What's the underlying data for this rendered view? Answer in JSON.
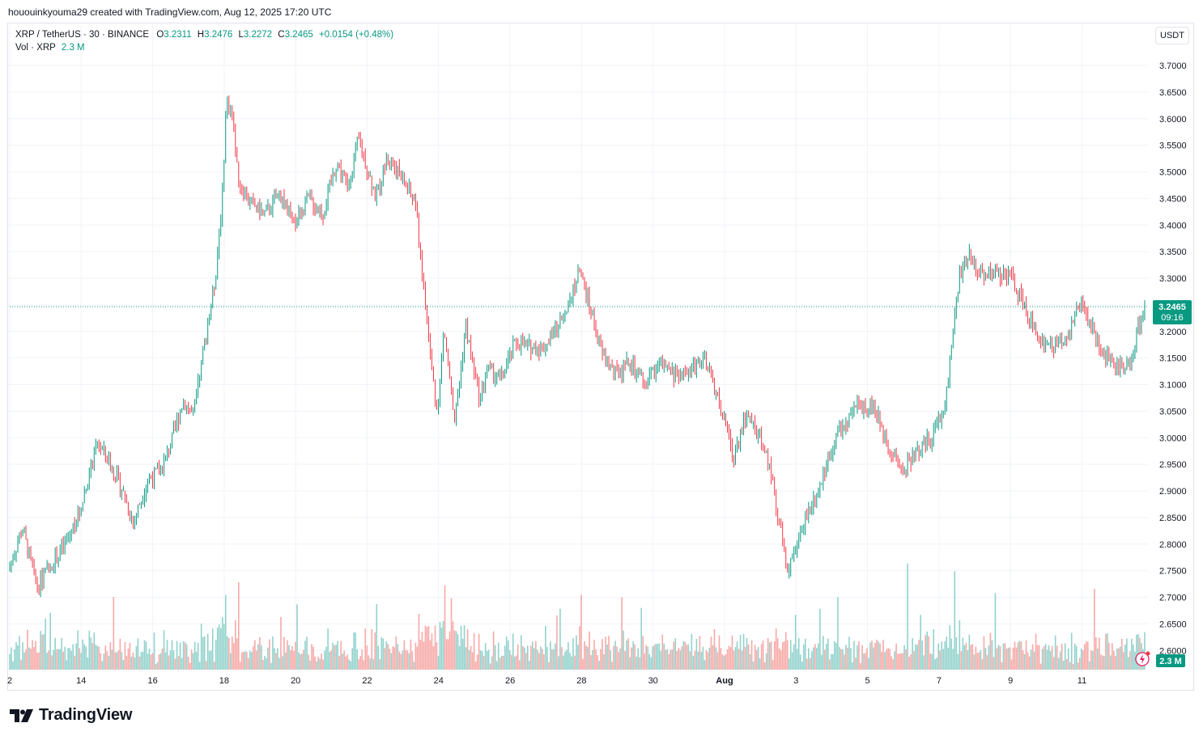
{
  "header": {
    "credit": "hououinkyouma29 created with TradingView.com, Aug 12, 2025 17:20 UTC"
  },
  "legend": {
    "symbol": "XRP / TetherUS · 30 · BINANCE",
    "open_label": "O",
    "open": "3.2311",
    "high_label": "H",
    "high": "3.2476",
    "low_label": "L",
    "low": "3.2272",
    "close_label": "C",
    "close": "3.2465",
    "change": "+0.0154 (+0.48%)",
    "vol_label": "Vol · XRP",
    "vol": "2.3 M"
  },
  "currency": "USDT",
  "last_price": {
    "value": "3.2465",
    "countdown": "09:16"
  },
  "volume_badge": "2.3 M",
  "footer": {
    "logo_text": "TradingView"
  },
  "colors": {
    "up": "#089981",
    "down": "#f23645",
    "up_vol": "#92d2cc",
    "down_vol": "#f7a9a7",
    "grid": "#f0f3fa"
  },
  "chart_data": {
    "type": "candlestick",
    "title": "XRP / TetherUS · 30 · BINANCE",
    "interval": "30m",
    "ylim": [
      2.57,
      3.73
    ],
    "y_ticks": [
      "3.7000",
      "3.6500",
      "3.6000",
      "3.5500",
      "3.5000",
      "3.4500",
      "3.4000",
      "3.3500",
      "3.3000",
      "3.2500",
      "3.2000",
      "3.1500",
      "3.1000",
      "3.0500",
      "3.0000",
      "2.9500",
      "2.9000",
      "2.8500",
      "2.8000",
      "2.7500",
      "2.7000",
      "2.6500",
      "2.6000"
    ],
    "x_ticks": [
      "2",
      "14",
      "16",
      "18",
      "20",
      "22",
      "24",
      "26",
      "28",
      "30",
      "Aug",
      "3",
      "5",
      "7",
      "9",
      "11"
    ],
    "x_tick_days": [
      12,
      14,
      16,
      18,
      20,
      22,
      24,
      26,
      28,
      30,
      32,
      34,
      36,
      38,
      40,
      42
    ],
    "x_range_days": [
      12,
      43.8
    ],
    "price_path": [
      [
        12.0,
        2.75
      ],
      [
        12.4,
        2.83
      ],
      [
        12.8,
        2.72
      ],
      [
        13.2,
        2.76
      ],
      [
        13.6,
        2.8
      ],
      [
        14.0,
        2.86
      ],
      [
        14.5,
        2.99
      ],
      [
        14.8,
        2.96
      ],
      [
        15.2,
        2.9
      ],
      [
        15.5,
        2.84
      ],
      [
        15.9,
        2.92
      ],
      [
        16.3,
        2.94
      ],
      [
        16.6,
        3.0
      ],
      [
        16.9,
        3.07
      ],
      [
        17.2,
        3.04
      ],
      [
        17.5,
        3.18
      ],
      [
        17.8,
        3.3
      ],
      [
        18.0,
        3.46
      ],
      [
        18.1,
        3.63
      ],
      [
        18.25,
        3.62
      ],
      [
        18.45,
        3.48
      ],
      [
        18.8,
        3.44
      ],
      [
        19.2,
        3.42
      ],
      [
        19.6,
        3.46
      ],
      [
        20.0,
        3.4
      ],
      [
        20.4,
        3.45
      ],
      [
        20.8,
        3.42
      ],
      [
        21.2,
        3.52
      ],
      [
        21.5,
        3.47
      ],
      [
        21.8,
        3.56
      ],
      [
        22.0,
        3.52
      ],
      [
        22.3,
        3.45
      ],
      [
        22.6,
        3.53
      ],
      [
        23.0,
        3.49
      ],
      [
        23.4,
        3.44
      ],
      [
        23.6,
        3.3
      ],
      [
        23.8,
        3.16
      ],
      [
        24.0,
        3.05
      ],
      [
        24.2,
        3.2
      ],
      [
        24.5,
        3.03
      ],
      [
        24.8,
        3.21
      ],
      [
        25.2,
        3.07
      ],
      [
        25.4,
        3.13
      ],
      [
        25.8,
        3.11
      ],
      [
        26.2,
        3.18
      ],
      [
        26.6,
        3.17
      ],
      [
        27.0,
        3.17
      ],
      [
        27.4,
        3.21
      ],
      [
        27.8,
        3.28
      ],
      [
        28.0,
        3.31
      ],
      [
        28.3,
        3.24
      ],
      [
        28.6,
        3.16
      ],
      [
        29.0,
        3.12
      ],
      [
        29.4,
        3.14
      ],
      [
        29.8,
        3.1
      ],
      [
        30.2,
        3.14
      ],
      [
        30.6,
        3.12
      ],
      [
        31.0,
        3.12
      ],
      [
        31.4,
        3.15
      ],
      [
        31.7,
        3.11
      ],
      [
        32.0,
        3.04
      ],
      [
        32.3,
        2.96
      ],
      [
        32.6,
        3.04
      ],
      [
        32.9,
        3.02
      ],
      [
        33.3,
        2.95
      ],
      [
        33.6,
        2.83
      ],
      [
        33.8,
        2.76
      ],
      [
        34.0,
        2.78
      ],
      [
        34.3,
        2.85
      ],
      [
        34.7,
        2.91
      ],
      [
        35.0,
        2.97
      ],
      [
        35.2,
        3.01
      ],
      [
        35.5,
        3.03
      ],
      [
        35.8,
        3.06
      ],
      [
        36.2,
        3.06
      ],
      [
        36.6,
        2.99
      ],
      [
        37.0,
        2.94
      ],
      [
        37.4,
        2.97
      ],
      [
        37.8,
        3.0
      ],
      [
        38.2,
        3.05
      ],
      [
        38.6,
        3.3
      ],
      [
        38.9,
        3.34
      ],
      [
        39.2,
        3.31
      ],
      [
        39.6,
        3.31
      ],
      [
        40.0,
        3.31
      ],
      [
        40.4,
        3.25
      ],
      [
        40.8,
        3.19
      ],
      [
        41.2,
        3.17
      ],
      [
        41.6,
        3.19
      ],
      [
        42.0,
        3.25
      ],
      [
        42.3,
        3.21
      ],
      [
        42.6,
        3.16
      ],
      [
        43.0,
        3.14
      ],
      [
        43.4,
        3.13
      ],
      [
        43.6,
        3.2
      ],
      [
        43.8,
        3.25
      ]
    ]
  }
}
